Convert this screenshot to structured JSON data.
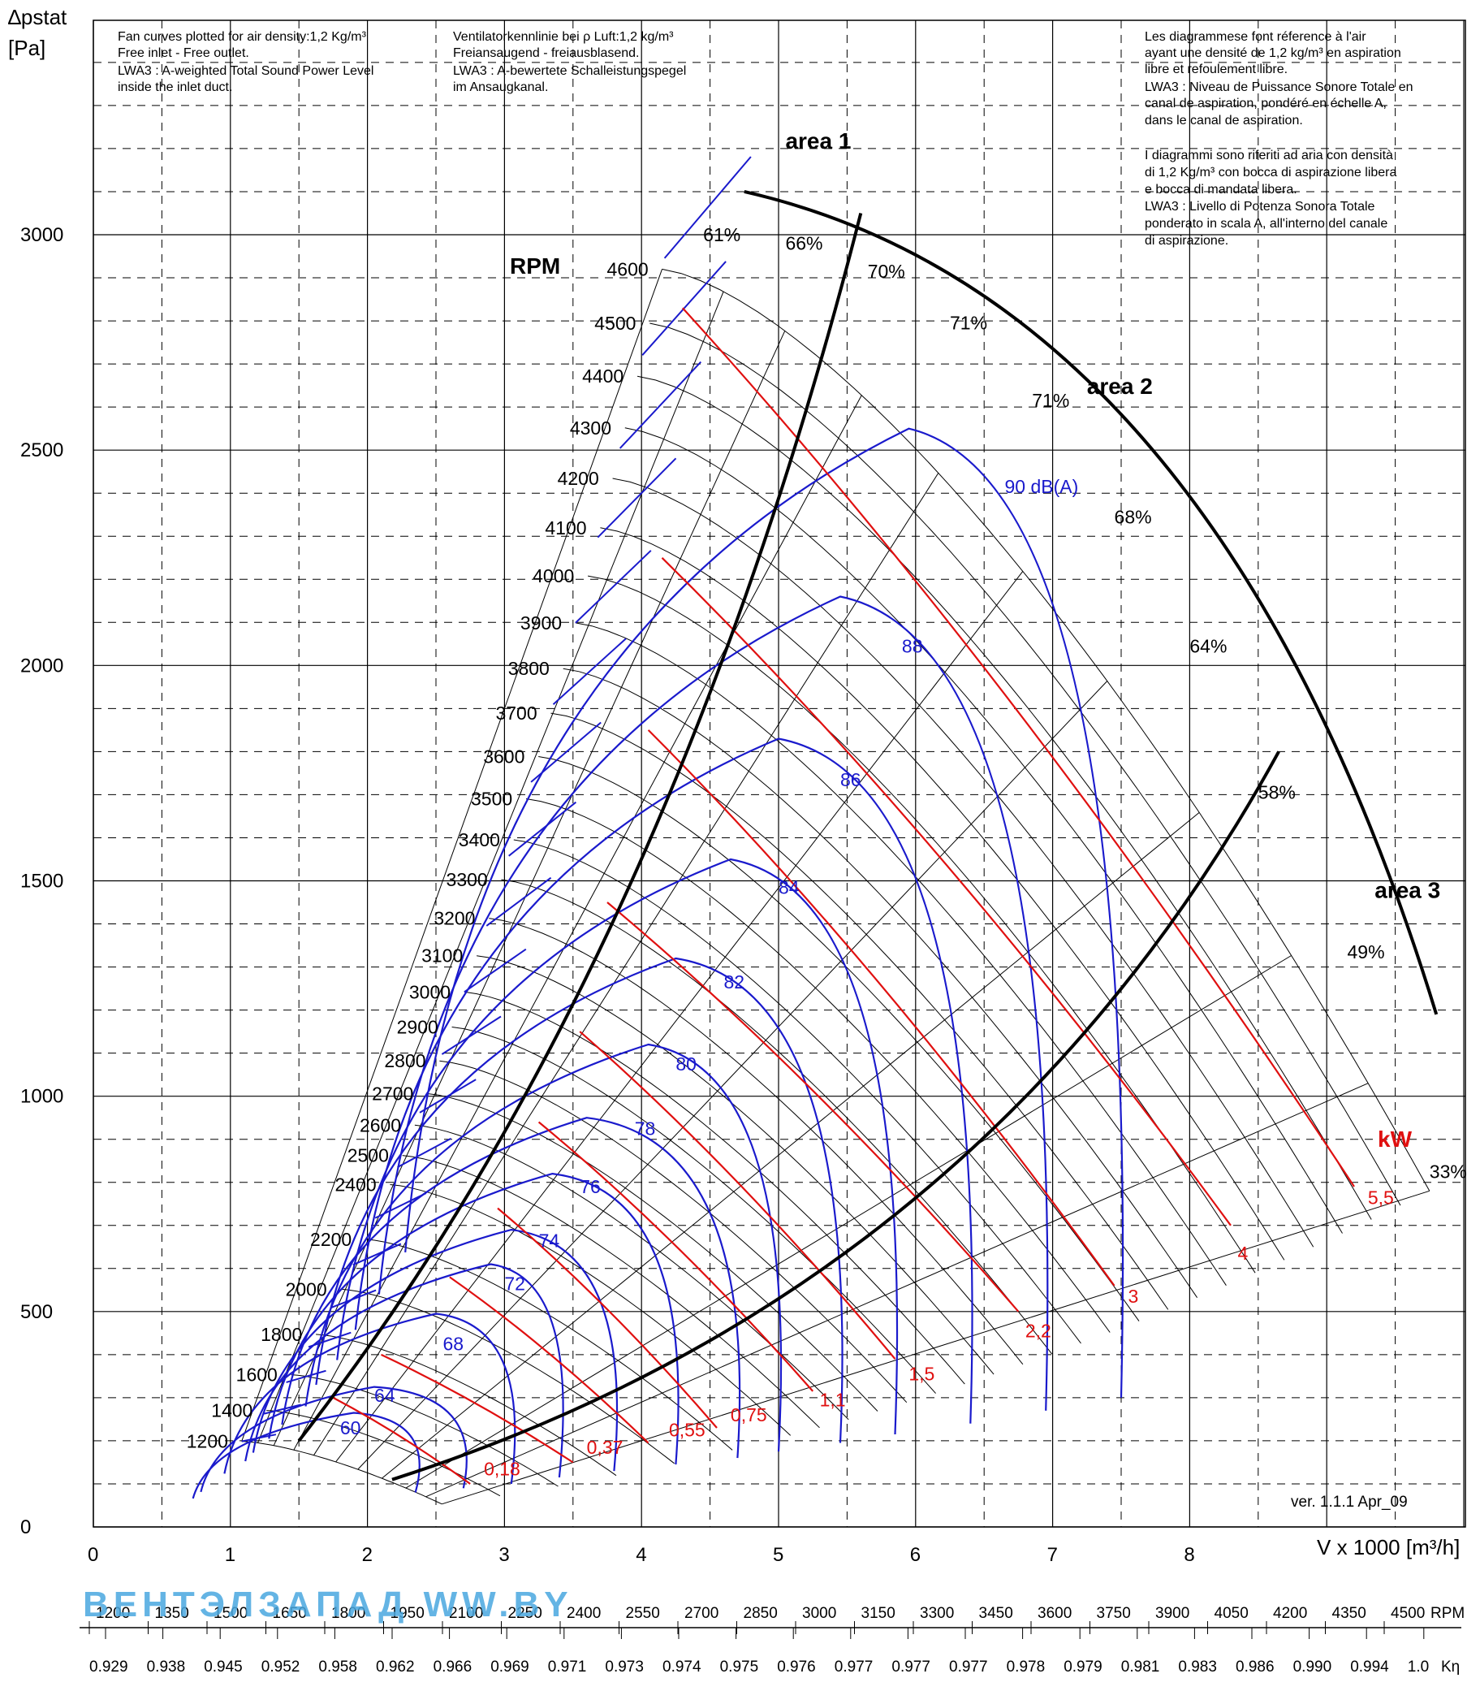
{
  "chart_data": {
    "type": "line",
    "title": "",
    "ylabel_line1": "∆pstat",
    "ylabel_line2": "[Pa]",
    "xlabel": "V x 1000 [m³/h]",
    "xlim": [
      0,
      10
    ],
    "ylim": [
      0,
      3500
    ],
    "x_ticks": [
      0,
      1,
      2,
      3,
      4,
      5,
      6,
      7,
      8
    ],
    "y_ticks": [
      0,
      500,
      1000,
      1500,
      2000,
      2500,
      3000
    ],
    "y_tick_labels": [
      "0",
      "500",
      "1000",
      "1500",
      "2000",
      "2500",
      "3000"
    ],
    "x_tick_labels": [
      "0",
      "1",
      "2",
      "3",
      "4",
      "5",
      "6",
      "7",
      "8"
    ],
    "grid": true,
    "notes": {
      "en": [
        "Fan curves plotted for air density:1,2 Kg/m³",
        "Free inlet - Free outlet.",
        "LWA3 : A-weighted Total Sound Power Level",
        "inside the inlet duct."
      ],
      "de": [
        "Ventilatorkennlinie bei ρ Luft:1,2 kg/m³",
        "Freiansaugend - freiausblasend.",
        "LWA3 : A-bewertete Schalleistungspegel",
        "im Ansaugkanal."
      ],
      "fr_it": [
        "Les diagrammese font réference à l'air",
        "ayant une densité de 1,2 kg/m³ en aspiration",
        "libre et refoulement libre.",
        "LWA3 : Niveau de Puissance Sonore Totale en",
        "canal de aspiration, pondéré en échelle A,",
        "dans le canal de aspiration.",
        "",
        "I diagrammi sono riferiti ad aria con densità",
        "di 1,2 Kg/m³ con bocca di aspirazione libera",
        "e bocca di mandata libera.",
        "LWA3 : Livello di Potenza Sonora Totale",
        "ponderato in scala A, all'interno del canale",
        "di aspirazione."
      ]
    },
    "rpm_heading": "RPM",
    "rpm_curves": [
      1200,
      1400,
      1600,
      1800,
      2000,
      2200,
      2400,
      2500,
      2600,
      2700,
      2800,
      2900,
      3000,
      3100,
      3200,
      3300,
      3400,
      3500,
      3600,
      3700,
      3800,
      3900,
      4000,
      4100,
      4200,
      4300,
      4400,
      4500,
      4600
    ],
    "efficiency_labels": [
      {
        "text": "61%",
        "x": 4.45,
        "y": 2985
      },
      {
        "text": "66%",
        "x": 5.05,
        "y": 2965
      },
      {
        "text": "70%",
        "x": 5.65,
        "y": 2900
      },
      {
        "text": "71%",
        "x": 6.25,
        "y": 2780
      },
      {
        "text": "71%",
        "x": 6.85,
        "y": 2600
      },
      {
        "text": "68%",
        "x": 7.45,
        "y": 2330
      },
      {
        "text": "64%",
        "x": 8.0,
        "y": 2030
      },
      {
        "text": "58%",
        "x": 8.5,
        "y": 1690
      },
      {
        "text": "49%",
        "x": 9.15,
        "y": 1320
      },
      {
        "text": "33%",
        "x": 9.75,
        "y": 810
      }
    ],
    "sound_levels_dBA": [
      "60",
      "64",
      "68",
      "72",
      "74",
      "76",
      "78",
      "80",
      "82",
      "84",
      "86",
      "88",
      "90 dB(A)"
    ],
    "sound_curves": [
      {
        "label": "60",
        "peak": [
          1.9,
          265
        ],
        "right_end": [
          2.35,
          80
        ],
        "lx": 1.8,
        "ly": 215
      },
      {
        "label": "64",
        "peak": [
          2.05,
          325
        ],
        "right_end": [
          2.7,
          90
        ],
        "lx": 2.05,
        "ly": 290
      },
      {
        "label": "68",
        "peak": [
          2.5,
          495
        ],
        "right_end": [
          3.05,
          100
        ],
        "lx": 2.55,
        "ly": 410
      },
      {
        "label": "72",
        "peak": [
          2.9,
          610
        ],
        "right_end": [
          3.4,
          115
        ],
        "lx": 3.0,
        "ly": 550
      },
      {
        "label": "74",
        "peak": [
          3.05,
          690
        ],
        "right_end": [
          3.8,
          130
        ],
        "lx": 3.25,
        "ly": 650
      },
      {
        "label": "76",
        "peak": [
          3.35,
          820
        ],
        "right_end": [
          4.25,
          145
        ],
        "lx": 3.55,
        "ly": 775
      },
      {
        "label": "78",
        "peak": [
          3.6,
          950
        ],
        "right_end": [
          4.7,
          160
        ],
        "lx": 3.95,
        "ly": 910
      },
      {
        "label": "80",
        "peak": [
          4.05,
          1120
        ],
        "right_end": [
          5.0,
          175
        ],
        "lx": 4.25,
        "ly": 1060
      },
      {
        "label": "82",
        "peak": [
          4.25,
          1320
        ],
        "right_end": [
          5.45,
          195
        ],
        "lx": 4.6,
        "ly": 1250
      },
      {
        "label": "84",
        "peak": [
          4.65,
          1550
        ],
        "right_end": [
          5.85,
          215
        ],
        "lx": 5.0,
        "ly": 1470
      },
      {
        "label": "86",
        "peak": [
          5.0,
          1830
        ],
        "right_end": [
          6.4,
          240
        ],
        "lx": 5.45,
        "ly": 1720
      },
      {
        "label": "88",
        "peak": [
          5.45,
          2160
        ],
        "right_end": [
          6.95,
          270
        ],
        "lx": 5.9,
        "ly": 2030
      },
      {
        "label": "90 dB(A)",
        "peak": [
          5.95,
          2550
        ],
        "right_end": [
          7.5,
          300
        ],
        "lx": 6.65,
        "ly": 2400
      }
    ],
    "power_kW_heading": "kW",
    "power_curves": [
      {
        "label": "0,18",
        "start": [
          1.75,
          300
        ],
        "end": [
          2.75,
          100
        ],
        "lx": 2.85,
        "ly": 120
      },
      {
        "label": "0,37",
        "start": [
          2.1,
          400
        ],
        "end": [
          3.5,
          150
        ],
        "lx": 3.6,
        "ly": 170
      },
      {
        "label": "0,55",
        "start": [
          2.6,
          580
        ],
        "end": [
          4.05,
          195
        ],
        "lx": 4.2,
        "ly": 210
      },
      {
        "label": "0,75",
        "start": [
          2.95,
          740
        ],
        "end": [
          4.55,
          230
        ],
        "lx": 4.65,
        "ly": 245
      },
      {
        "label": "1,1",
        "start": [
          3.25,
          940
        ],
        "end": [
          5.25,
          315
        ],
        "lx": 5.3,
        "ly": 280
      },
      {
        "label": "1,5",
        "start": [
          3.55,
          1150
        ],
        "end": [
          5.85,
          390
        ],
        "lx": 5.95,
        "ly": 340
      },
      {
        "label": "2,2",
        "start": [
          3.75,
          1450
        ],
        "end": [
          6.75,
          500
        ],
        "lx": 6.8,
        "ly": 440
      },
      {
        "label": "3",
        "start": [
          4.05,
          1850
        ],
        "end": [
          7.45,
          560
        ],
        "lx": 7.55,
        "ly": 520
      },
      {
        "label": "4",
        "start": [
          4.15,
          2250
        ],
        "end": [
          8.3,
          700
        ],
        "lx": 8.35,
        "ly": 620
      },
      {
        "label": "5,5",
        "start": [
          4.3,
          2830
        ],
        "end": [
          9.2,
          790
        ],
        "lx": 9.3,
        "ly": 750
      }
    ],
    "areas": [
      {
        "label": "area 1",
        "x": 5.05,
        "y": 3200
      },
      {
        "label": "area 2",
        "x": 7.25,
        "y": 2630
      },
      {
        "label": "area 3",
        "x": 9.35,
        "y": 1460
      }
    ],
    "version": "ver. 1.1.1 Apr_09",
    "bottom_rpm_scale": [
      "1200",
      "1350",
      "1500",
      "1650",
      "1800",
      "1950",
      "2100",
      "2250",
      "2400",
      "2550",
      "2700",
      "2850",
      "3000",
      "3150",
      "3300",
      "3450",
      "3600",
      "3750",
      "3900",
      "4050",
      "4200",
      "4350",
      "4500"
    ],
    "bottom_rpm_unit": "RPM",
    "bottom_k_scale": [
      "0.929",
      "0.938",
      "0.945",
      "0.952",
      "0.958",
      "0.962",
      "0.966",
      "0.969",
      "0.971",
      "0.973",
      "0.974",
      "0.975",
      "0.976",
      "0.977",
      "0.977",
      "0.977",
      "0.978",
      "0.979",
      "0.981",
      "0.983",
      "0.986",
      "0.990",
      "0.994",
      "1.0"
    ],
    "bottom_k_unit": "Kη",
    "watermark": "ВЕНТЭЛЗАПАД  WW.BY",
    "colors": {
      "grid": "#000000",
      "sound": "#1a1acc",
      "power": "#e01010",
      "system": "#000000",
      "watermark_blue": "#4aa8e0",
      "watermark_dark": "#3a3a3a"
    }
  }
}
